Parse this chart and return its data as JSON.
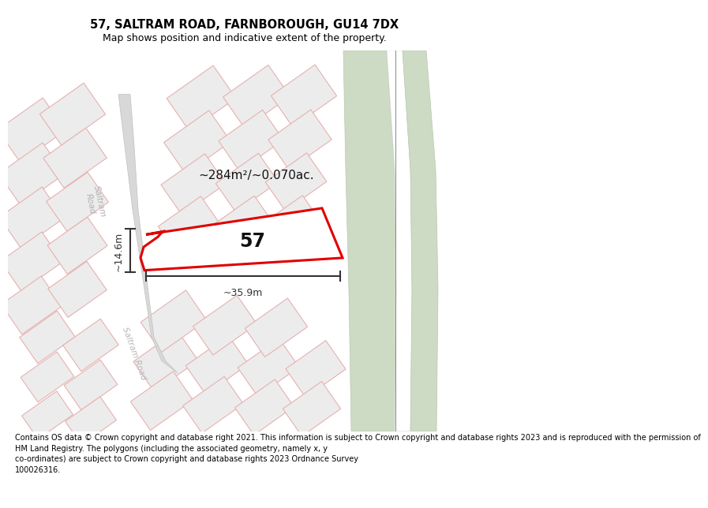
{
  "title": "57, SALTRAM ROAD, FARNBOROUGH, GU14 7DX",
  "subtitle": "Map shows position and indicative extent of the property.",
  "footer": "Contains OS data © Crown copyright and database right 2021. This information is subject to Crown copyright and database rights 2023 and is reproduced with the permission of\nHM Land Registry. The polygons (including the associated geometry, namely x, y\nco-ordinates) are subject to Crown copyright and database rights 2023 Ordnance Survey\n100026316.",
  "area_label": "~284m²/~0.070ac.",
  "width_label": "~35.9m",
  "height_label": "~14.6m",
  "number_label": "57",
  "property_color": "#e00000",
  "parcel_fill": "#ececec",
  "parcel_edge": "#e8b0b0",
  "road_fill": "#d8d8d8",
  "road_edge": "#c0c0c0",
  "green1_fill": "#cddbc5",
  "green2_fill": "#cddbc5",
  "white": "#ffffff",
  "dim_color": "#333333",
  "label_color": "#aaaaaa",
  "title_fontsize": 10.5,
  "subtitle_fontsize": 9,
  "footer_fontsize": 7.0,
  "area_fontsize": 11,
  "num_fontsize": 17,
  "dim_fontsize": 9
}
